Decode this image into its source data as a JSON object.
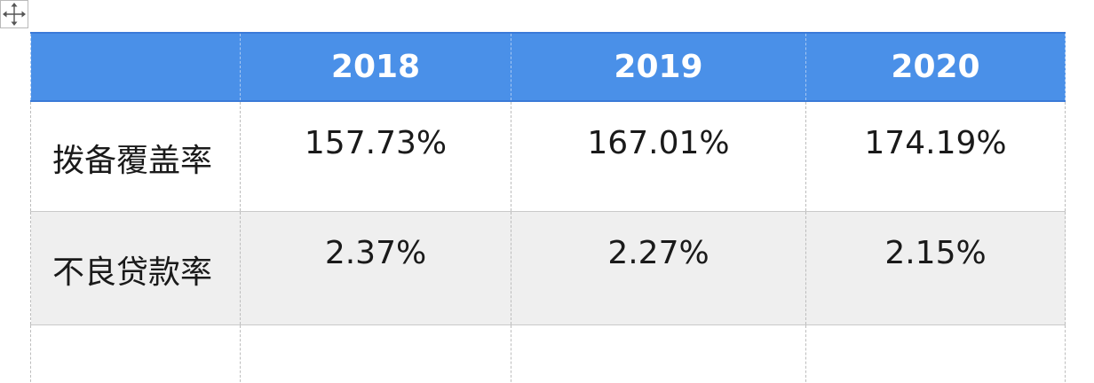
{
  "table": {
    "headers": [
      "",
      "2018",
      "2019",
      "2020"
    ],
    "rows": [
      {
        "label": "拨备覆盖率",
        "values": [
          "157.73%",
          "167.01%",
          "174.19%"
        ]
      },
      {
        "label": "不良贷款率",
        "values": [
          "2.37%",
          "2.27%",
          "2.15%"
        ]
      },
      {
        "label": "",
        "values": [
          "",
          "",
          ""
        ]
      }
    ]
  },
  "icons": {
    "move_handle": "move-arrows-icon"
  },
  "colors": {
    "header_bg": "#4a90e8",
    "header_text": "#ffffff",
    "row_alt_bg": "#efefef",
    "text": "#1a1a1a"
  }
}
